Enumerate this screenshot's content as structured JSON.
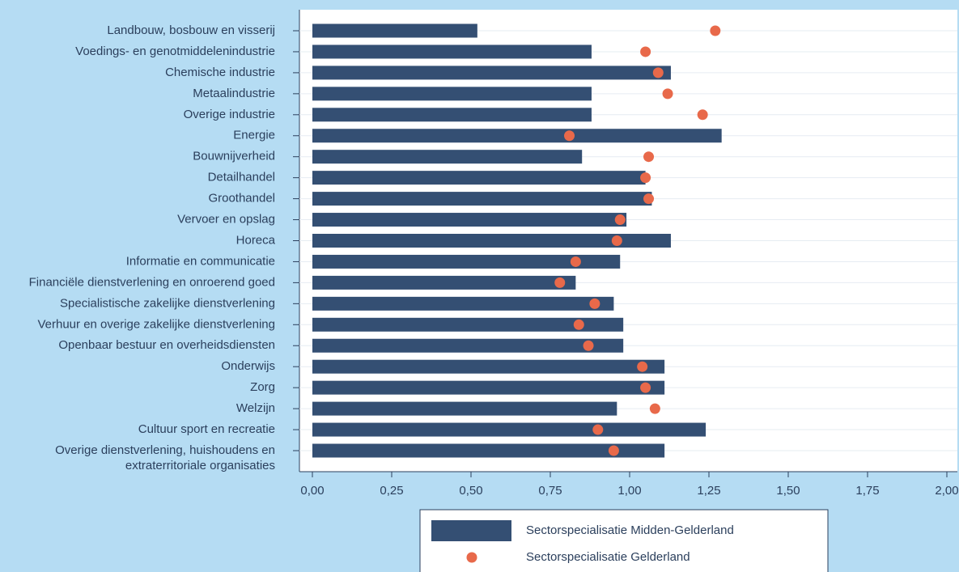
{
  "chart_data": {
    "type": "bar_dot",
    "categories": [
      "Landbouw, bosbouw en visserij",
      "Voedings- en genotmiddelenindustrie",
      "Chemische industrie",
      "Metaalindustrie",
      "Overige industrie",
      "Energie",
      "Bouwnijverheid",
      "Detailhandel",
      "Groothandel",
      "Vervoer en opslag",
      "Horeca",
      "Informatie en communicatie",
      "Financiële dienstverlening en onroerend goed",
      "Specialistische zakelijke dienstverlening",
      "Verhuur en overige zakelijke dienstverlening",
      "Openbaar bestuur en overheidsdiensten",
      "Onderwijs",
      "Zorg",
      "Welzijn",
      "Cultuur sport en recreatie",
      "Overige dienstverlening, huishoudens en\nextraterritoriale organisaties"
    ],
    "series": [
      {
        "name": "Sectorspecialisatie Midden-Gelderland",
        "color": "#344f73",
        "mark": "bar",
        "values": [
          0.52,
          0.88,
          1.13,
          0.88,
          0.88,
          1.29,
          0.85,
          1.05,
          1.07,
          0.99,
          1.13,
          0.97,
          0.83,
          0.95,
          0.98,
          0.98,
          1.11,
          1.11,
          0.96,
          1.24,
          1.11
        ]
      },
      {
        "name": "Sectorspecialisatie Gelderland",
        "color": "#e8694a",
        "mark": "dot",
        "values": [
          1.27,
          1.05,
          1.09,
          1.12,
          1.23,
          0.81,
          1.06,
          1.05,
          1.06,
          0.97,
          0.96,
          0.83,
          0.78,
          0.89,
          0.84,
          0.87,
          1.04,
          1.05,
          1.08,
          0.9,
          0.95
        ]
      }
    ],
    "xlim": [
      0,
      2
    ],
    "xticks": [
      {
        "value": 0,
        "label": "0,00"
      },
      {
        "value": 0.25,
        "label": "0,25"
      },
      {
        "value": 0.5,
        "label": "0,50"
      },
      {
        "value": 0.75,
        "label": "0,75"
      },
      {
        "value": 1,
        "label": "1,00"
      },
      {
        "value": 1.25,
        "label": "1,25"
      },
      {
        "value": 1.5,
        "label": "1,50"
      },
      {
        "value": 1.75,
        "label": "1,75"
      },
      {
        "value": 2,
        "label": "2,00"
      }
    ],
    "grid": true,
    "legend": "bottom"
  }
}
